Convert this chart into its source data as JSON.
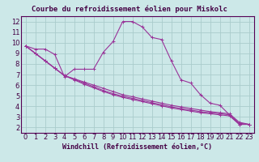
{
  "title": "Courbe du refroidissement éolien pour Miskolc",
  "xlabel": "Windchill (Refroidissement éolien,°C)",
  "bg_color": "#cce8e8",
  "grid_color": "#aacccc",
  "line_color": "#993399",
  "xlim": [
    -0.5,
    23.5
  ],
  "ylim": [
    1.5,
    12.5
  ],
  "xticks": [
    0,
    1,
    2,
    3,
    4,
    5,
    6,
    7,
    8,
    9,
    10,
    11,
    12,
    13,
    14,
    15,
    16,
    17,
    18,
    19,
    20,
    21,
    22,
    23
  ],
  "yticks": [
    2,
    3,
    4,
    5,
    6,
    7,
    8,
    9,
    10,
    11,
    12
  ],
  "series": [
    [
      9.7,
      9.4,
      9.4,
      8.9,
      6.8,
      7.5,
      7.5,
      7.5,
      9.1,
      10.1,
      12.0,
      12.0,
      11.5,
      10.5,
      10.3,
      8.3,
      6.5,
      6.2,
      5.1,
      4.3,
      4.1,
      3.2,
      2.3,
      2.3
    ],
    [
      9.7,
      9.0,
      8.3,
      7.6,
      6.9,
      6.6,
      6.3,
      6.0,
      5.7,
      5.4,
      5.1,
      4.9,
      4.7,
      4.5,
      4.3,
      4.1,
      3.95,
      3.8,
      3.65,
      3.5,
      3.4,
      3.3,
      2.5,
      2.3
    ],
    [
      9.7,
      9.0,
      8.3,
      7.6,
      6.9,
      6.55,
      6.2,
      5.85,
      5.5,
      5.2,
      4.95,
      4.75,
      4.55,
      4.35,
      4.15,
      3.95,
      3.8,
      3.65,
      3.5,
      3.4,
      3.3,
      3.2,
      2.4,
      2.3
    ],
    [
      9.7,
      9.0,
      8.3,
      7.6,
      6.9,
      6.5,
      6.1,
      5.75,
      5.4,
      5.1,
      4.85,
      4.65,
      4.45,
      4.25,
      4.05,
      3.85,
      3.7,
      3.55,
      3.4,
      3.3,
      3.2,
      3.1,
      2.3,
      2.3
    ]
  ],
  "marker": "+",
  "markersize": 3,
  "linewidth": 0.8,
  "fontsize_ticks": 6,
  "fontsize_label": 6,
  "fontsize_title": 6.5
}
